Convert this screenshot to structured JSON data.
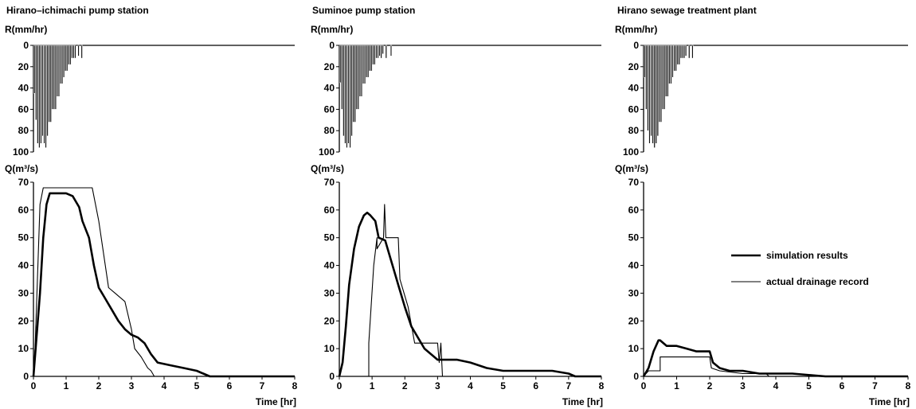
{
  "chart_data": [
    {
      "type": "line",
      "title": "Hirano–ichimachi pump station",
      "rain_ylabel": "R(mm/hr)",
      "ylabel": "Q(m³/s)",
      "xlabel": "Time [hr]",
      "rain_ylim": [
        0,
        100
      ],
      "rain_yticks": [
        "0",
        "20",
        "40",
        "60",
        "80",
        "100"
      ],
      "ylim": [
        0,
        70
      ],
      "yticks": [
        "0",
        "10",
        "20",
        "30",
        "40",
        "50",
        "60",
        "70"
      ],
      "xlim": [
        0,
        8
      ],
      "xticks": [
        "0",
        "1",
        "2",
        "3",
        "4",
        "5",
        "6",
        "7",
        "8"
      ],
      "rainfall": {
        "t": [
          0.05,
          0.1,
          0.15,
          0.2,
          0.25,
          0.3,
          0.35,
          0.4,
          0.45,
          0.5,
          0.55,
          0.6,
          0.65,
          0.7,
          0.75,
          0.8,
          0.85,
          0.9,
          0.95,
          1.0,
          1.05,
          1.1,
          1.15,
          1.2,
          1.25,
          1.3,
          1.4,
          1.5
        ],
        "R": [
          45,
          70,
          92,
          96,
          92,
          85,
          92,
          96,
          85,
          72,
          72,
          60,
          60,
          60,
          48,
          48,
          36,
          36,
          30,
          24,
          24,
          18,
          18,
          12,
          12,
          12,
          10,
          12
        ]
      },
      "series": [
        {
          "name": "simulation results",
          "x": [
            0,
            0.1,
            0.2,
            0.3,
            0.4,
            0.5,
            0.7,
            1.0,
            1.2,
            1.4,
            1.5,
            1.7,
            1.85,
            2.0,
            2.2,
            2.4,
            2.6,
            2.8,
            3.0,
            3.2,
            3.4,
            3.6,
            3.8,
            4.2,
            4.6,
            5.0,
            5.2,
            5.4,
            6.0,
            7.0,
            8.0
          ],
          "y": [
            0,
            15,
            30,
            50,
            62,
            66,
            66,
            66,
            65,
            61,
            56,
            50,
            40,
            32,
            28,
            24,
            20,
            17,
            15,
            14,
            12,
            8,
            5,
            4,
            3,
            2,
            1,
            0,
            0,
            0,
            0
          ]
        },
        {
          "name": "actual drainage record",
          "x": [
            0,
            0.05,
            0.2,
            0.3,
            0.6,
            0.8,
            1.0,
            1.8,
            1.9,
            2.0,
            2.2,
            2.3,
            2.5,
            2.8,
            3.0,
            3.1,
            3.3,
            3.5,
            3.6,
            3.7,
            8.0
          ],
          "y": [
            0,
            10,
            62,
            68,
            68,
            68,
            68,
            68,
            62,
            56,
            40,
            32,
            30,
            27,
            17,
            10,
            7,
            3,
            2,
            0,
            0
          ]
        }
      ]
    },
    {
      "type": "line",
      "title": "Suminoe pump station",
      "rain_ylabel": "R(mm/hr)",
      "ylabel": "Q(m³/s)",
      "xlabel": "Time [hr]",
      "rain_ylim": [
        0,
        100
      ],
      "rain_yticks": [
        "0",
        "20",
        "40",
        "60",
        "80",
        "100"
      ],
      "ylim": [
        0,
        70
      ],
      "yticks": [
        "0",
        "10",
        "20",
        "30",
        "40",
        "50",
        "60",
        "70"
      ],
      "xlim": [
        0,
        8
      ],
      "xticks": [
        "0",
        "1",
        "2",
        "3",
        "4",
        "5",
        "6",
        "7",
        "8"
      ],
      "rainfall": {
        "t": [
          0.05,
          0.1,
          0.15,
          0.2,
          0.25,
          0.3,
          0.35,
          0.4,
          0.45,
          0.5,
          0.55,
          0.6,
          0.65,
          0.7,
          0.75,
          0.8,
          0.85,
          0.9,
          0.95,
          1.0,
          1.05,
          1.1,
          1.15,
          1.2,
          1.25,
          1.3,
          1.35,
          1.45,
          1.6
        ],
        "R": [
          35,
          60,
          85,
          92,
          96,
          92,
          96,
          85,
          72,
          72,
          60,
          60,
          48,
          48,
          36,
          36,
          30,
          30,
          24,
          24,
          18,
          18,
          12,
          12,
          10,
          12,
          8,
          12,
          10
        ]
      },
      "series": [
        {
          "name": "simulation results",
          "x": [
            0,
            0.1,
            0.2,
            0.3,
            0.45,
            0.6,
            0.75,
            0.85,
            0.95,
            1.1,
            1.2,
            1.4,
            1.6,
            1.8,
            2.0,
            2.2,
            2.6,
            3.0,
            3.3,
            3.6,
            4.0,
            4.5,
            5.0,
            5.5,
            6.0,
            6.5,
            7.0,
            7.2,
            7.5,
            8.0
          ],
          "y": [
            0,
            5,
            18,
            33,
            46,
            54,
            58,
            59,
            58,
            56,
            50,
            49,
            41,
            33,
            25,
            18,
            10,
            6,
            6,
            6,
            5,
            3,
            2,
            2,
            2,
            2,
            1,
            0,
            0,
            0
          ]
        },
        {
          "name": "actual drainage record",
          "x": [
            0,
            0.9,
            0.9,
            1.05,
            1.15,
            1.15,
            1.35,
            1.38,
            1.42,
            1.45,
            1.8,
            1.85,
            2.1,
            2.3,
            2.9,
            3.0,
            3.05,
            3.1,
            3.15,
            8.0
          ],
          "y": [
            0,
            0,
            12,
            40,
            50,
            46,
            50,
            62,
            50,
            50,
            50,
            35,
            25,
            12,
            12,
            12,
            5,
            12,
            0,
            0
          ]
        }
      ]
    },
    {
      "type": "line",
      "title": "Hirano sewage treatment plant",
      "rain_ylabel": "R(mm/hr)",
      "ylabel": "Q(m³/s)",
      "xlabel": "Time [hr]",
      "rain_ylim": [
        0,
        100
      ],
      "rain_yticks": [
        "0",
        "20",
        "40",
        "60",
        "80",
        "100"
      ],
      "ylim": [
        0,
        70
      ],
      "yticks": [
        "0",
        "10",
        "20",
        "30",
        "40",
        "50",
        "60",
        "70"
      ],
      "xlim": [
        0,
        8
      ],
      "xticks": [
        "0",
        "1",
        "2",
        "3",
        "4",
        "5",
        "6",
        "7",
        "8"
      ],
      "rainfall": {
        "t": [
          0.05,
          0.1,
          0.15,
          0.2,
          0.25,
          0.3,
          0.35,
          0.4,
          0.45,
          0.5,
          0.55,
          0.6,
          0.65,
          0.7,
          0.75,
          0.8,
          0.85,
          0.9,
          0.95,
          1.0,
          1.05,
          1.1,
          1.15,
          1.2,
          1.25,
          1.3,
          1.4,
          1.5
        ],
        "R": [
          30,
          60,
          80,
          92,
          85,
          92,
          96,
          92,
          85,
          72,
          72,
          60,
          60,
          48,
          48,
          36,
          36,
          30,
          24,
          24,
          18,
          18,
          12,
          12,
          12,
          10,
          12,
          12
        ]
      },
      "series": [
        {
          "name": "simulation results",
          "x": [
            0,
            0.15,
            0.3,
            0.45,
            0.5,
            0.7,
            1.0,
            1.3,
            1.6,
            2.0,
            2.1,
            2.3,
            2.6,
            3.0,
            3.5,
            3.8,
            4.5,
            5.5,
            6.0,
            8.0
          ],
          "y": [
            0,
            3,
            9,
            13,
            13,
            11,
            11,
            10,
            9,
            9,
            5,
            3,
            2,
            2,
            1,
            1,
            1,
            0,
            0,
            0
          ]
        },
        {
          "name": "actual drainage record",
          "x": [
            0,
            0.15,
            0.5,
            0.5,
            2.0,
            2.05,
            2.3,
            3.0,
            3.7,
            3.8,
            5.5,
            8.0
          ],
          "y": [
            0,
            2,
            2,
            7,
            7,
            3,
            2,
            1,
            1,
            0,
            0,
            0
          ]
        }
      ]
    }
  ]
}
